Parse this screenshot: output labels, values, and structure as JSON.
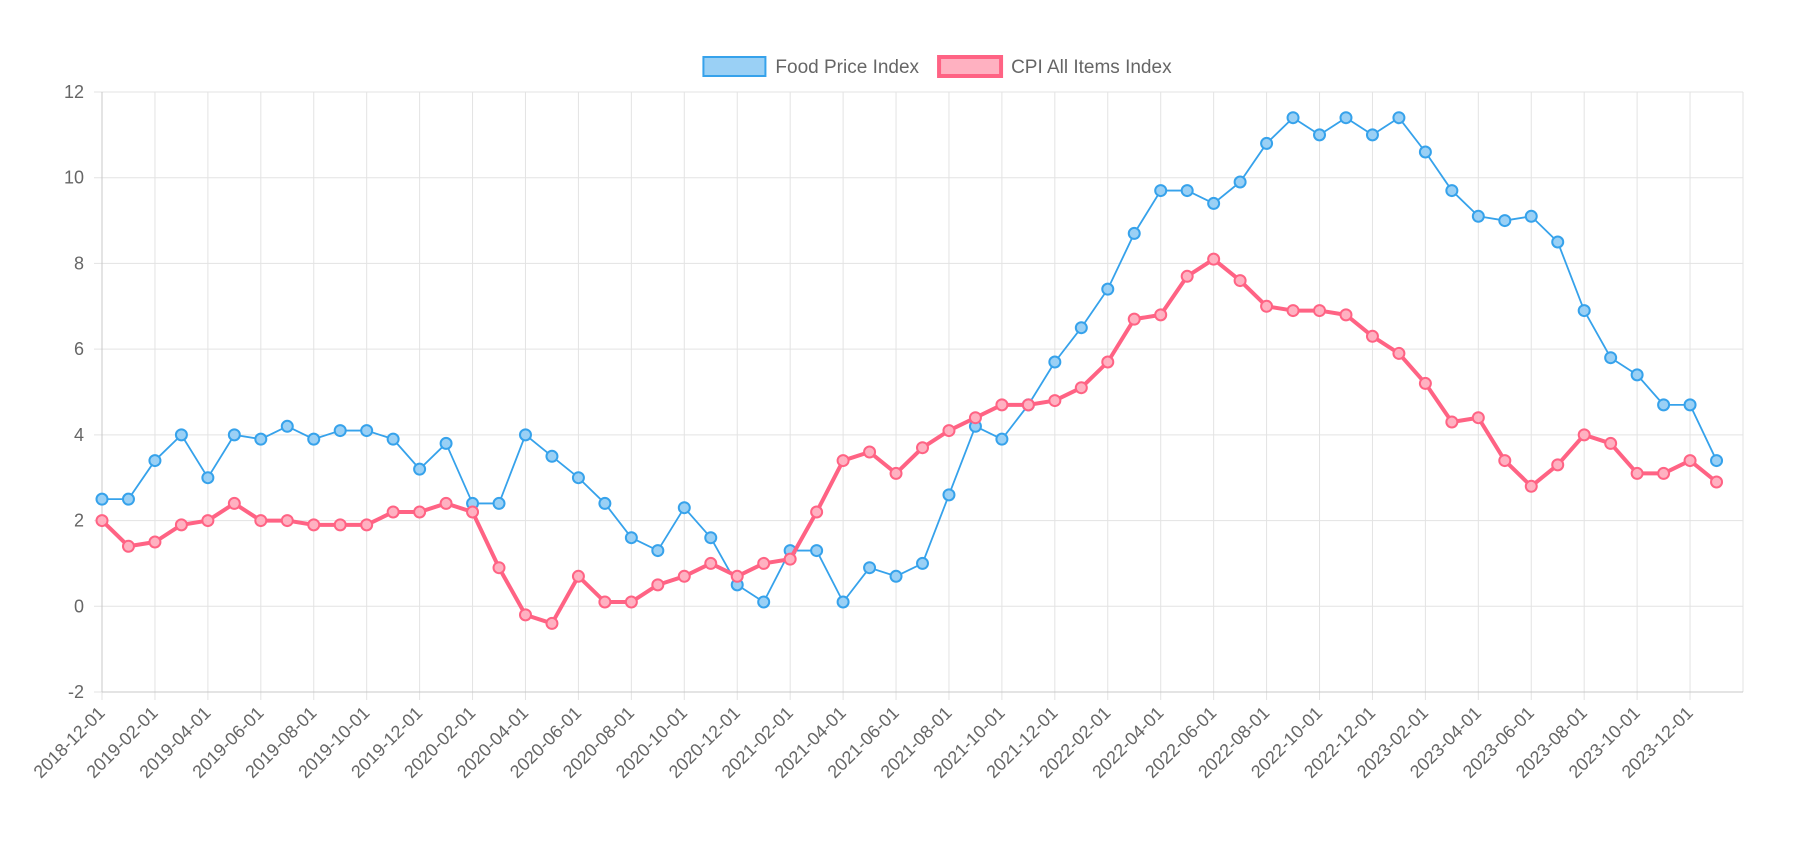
{
  "chart_data": {
    "type": "line",
    "x": [
      "2018-12-01",
      "2019-01-01",
      "2019-02-01",
      "2019-03-01",
      "2019-04-01",
      "2019-05-01",
      "2019-06-01",
      "2019-07-01",
      "2019-08-01",
      "2019-09-01",
      "2019-10-01",
      "2019-11-01",
      "2019-12-01",
      "2020-01-01",
      "2020-02-01",
      "2020-03-01",
      "2020-04-01",
      "2020-05-01",
      "2020-06-01",
      "2020-07-01",
      "2020-08-01",
      "2020-09-01",
      "2020-10-01",
      "2020-11-01",
      "2020-12-01",
      "2021-01-01",
      "2021-02-01",
      "2021-03-01",
      "2021-04-01",
      "2021-05-01",
      "2021-06-01",
      "2021-07-01",
      "2021-08-01",
      "2021-09-01",
      "2021-10-01",
      "2021-11-01",
      "2021-12-01",
      "2022-01-01",
      "2022-02-01",
      "2022-03-01",
      "2022-04-01",
      "2022-05-01",
      "2022-06-01",
      "2022-07-01",
      "2022-08-01",
      "2022-09-01",
      "2022-10-01",
      "2022-11-01",
      "2022-12-01",
      "2023-01-01",
      "2023-02-01",
      "2023-03-01",
      "2023-04-01",
      "2023-05-01",
      "2023-06-01",
      "2023-07-01",
      "2023-08-01",
      "2023-09-01",
      "2023-10-01",
      "2023-11-01",
      "2023-12-01",
      "2024-01-01"
    ],
    "x_tick_labels": [
      "2018-12-01",
      "2019-02-01",
      "2019-04-01",
      "2019-06-01",
      "2019-08-01",
      "2019-10-01",
      "2019-12-01",
      "2020-02-01",
      "2020-04-01",
      "2020-06-01",
      "2020-08-01",
      "2020-10-01",
      "2020-12-01",
      "2021-02-01",
      "2021-04-01",
      "2021-06-01",
      "2021-08-01",
      "2021-10-01",
      "2021-12-01",
      "2022-02-01",
      "2022-04-01",
      "2022-06-01",
      "2022-08-01",
      "2022-10-01",
      "2022-12-01",
      "2023-02-01",
      "2023-04-01",
      "2023-06-01",
      "2023-08-01",
      "2023-10-01",
      "2023-12-01"
    ],
    "series": [
      {
        "name": "Food Price Index",
        "color": "#36a2eb",
        "fill": "#9ad0f5",
        "values": [
          2.5,
          2.5,
          3.4,
          4.0,
          3.0,
          4.0,
          3.9,
          4.2,
          3.9,
          4.1,
          4.1,
          3.9,
          3.2,
          3.8,
          2.4,
          2.4,
          4.0,
          3.5,
          3.0,
          2.4,
          1.6,
          1.3,
          2.3,
          1.6,
          0.5,
          0.1,
          1.3,
          1.3,
          0.1,
          0.9,
          0.7,
          1.0,
          2.6,
          4.2,
          3.9,
          4.7,
          5.7,
          6.5,
          7.4,
          8.7,
          9.7,
          9.7,
          9.4,
          9.9,
          10.8,
          11.4,
          11.0,
          11.4,
          11.0,
          11.4,
          10.6,
          9.7,
          9.1,
          9.0,
          9.1,
          8.5,
          6.9,
          5.8,
          5.4,
          4.7,
          4.7,
          3.4
        ]
      },
      {
        "name": "CPI All Items Index",
        "color": "#ff6384",
        "fill": "#ffb1c1",
        "values": [
          2.0,
          1.4,
          1.5,
          1.9,
          2.0,
          2.4,
          2.0,
          2.0,
          1.9,
          1.9,
          1.9,
          2.2,
          2.2,
          2.4,
          2.2,
          0.9,
          -0.2,
          -0.4,
          0.7,
          0.1,
          0.1,
          0.5,
          0.7,
          1.0,
          0.7,
          1.0,
          1.1,
          2.2,
          3.4,
          3.6,
          3.1,
          3.7,
          4.1,
          4.4,
          4.7,
          4.7,
          4.8,
          5.1,
          5.7,
          6.7,
          6.8,
          7.7,
          8.1,
          7.6,
          7.0,
          6.9,
          6.9,
          6.8,
          6.3,
          5.9,
          5.2,
          4.3,
          4.4,
          3.4,
          2.8,
          3.3,
          4.0,
          3.8,
          3.1,
          3.1,
          3.4,
          2.9
        ]
      }
    ],
    "ylim": [
      -2,
      12
    ],
    "y_ticks": [
      -2,
      0,
      2,
      4,
      6,
      8,
      10,
      12
    ],
    "grid": true,
    "legend_position": "top"
  }
}
